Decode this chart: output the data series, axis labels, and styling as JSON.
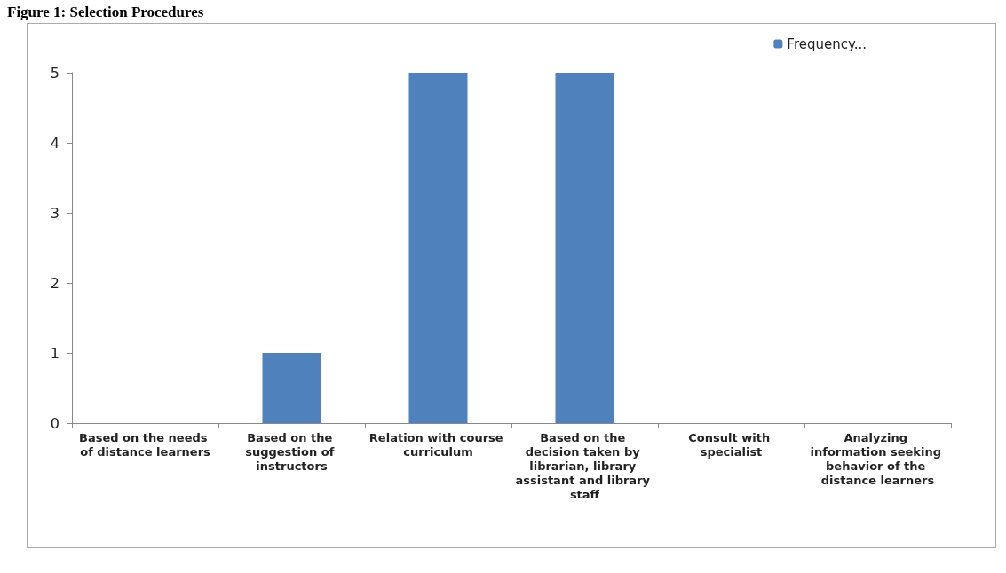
{
  "chart_data": {
    "type": "bar",
    "title": "Figure 1: Selection Procedures",
    "categories": [
      "Based on the needs of distance learners",
      "Based on the suggestion of instructors",
      "Relation with course curriculum",
      "Based on the decision taken by librarian, library assistant and library staff",
      "Consult with specialist",
      "Analyzing information seeking behavior of the distance learners"
    ],
    "series": [
      {
        "name": "Frequency...",
        "color": "#4f81bd",
        "values": [
          0,
          1,
          5,
          5,
          0,
          0
        ]
      }
    ],
    "ylim": [
      0,
      5
    ],
    "yticks": [
      0,
      1,
      2,
      3,
      4,
      5
    ],
    "grid": false,
    "legend": "top right"
  }
}
